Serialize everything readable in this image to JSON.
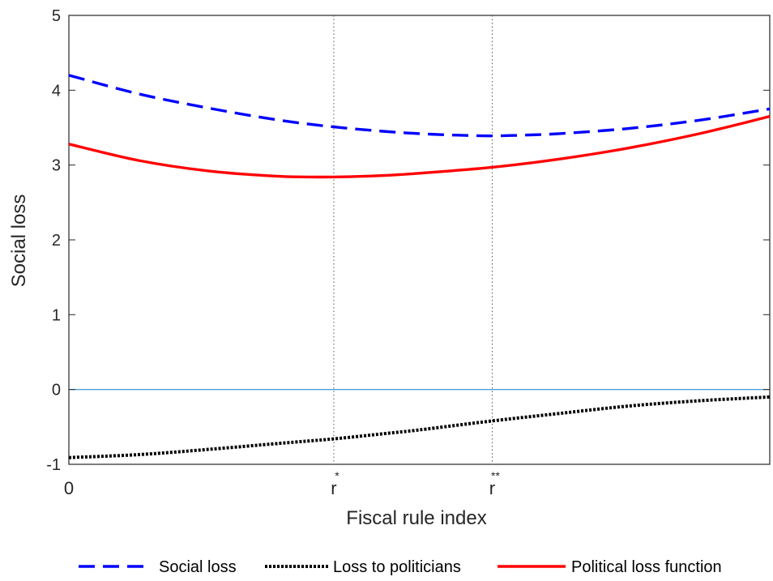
{
  "chart_data": {
    "type": "line",
    "xlabel": "Fiscal rule index",
    "ylabel": "Social loss",
    "xlim": [
      0,
      1
    ],
    "ylim": [
      -1,
      5
    ],
    "y_ticks": [
      "-1",
      "0",
      "1",
      "2",
      "3",
      "4",
      "5"
    ],
    "x_ticks": [
      {
        "x": 0,
        "label": "0",
        "sup": ""
      },
      {
        "x": 0.378,
        "label": "r",
        "sup": "*"
      },
      {
        "x": 0.604,
        "label": "r",
        "sup": "**"
      }
    ],
    "vertical_markers": [
      0.378,
      0.604
    ],
    "reference_line": {
      "y": 0,
      "color": "#4a9fdc"
    },
    "grid": false,
    "legend_position": "bottom",
    "series": [
      {
        "name": "Social loss",
        "color": "#0000ff",
        "style": "dashed",
        "x": [
          0,
          0.1,
          0.2,
          0.3,
          0.378,
          0.45,
          0.5,
          0.55,
          0.604,
          0.65,
          0.7,
          0.8,
          0.9,
          1.0
        ],
        "y": [
          4.2,
          3.95,
          3.76,
          3.6,
          3.51,
          3.45,
          3.42,
          3.4,
          3.39,
          3.4,
          3.42,
          3.49,
          3.6,
          3.75
        ]
      },
      {
        "name": "Loss to politicians",
        "color": "#000000",
        "style": "dotted",
        "x": [
          0,
          0.1,
          0.2,
          0.3,
          0.378,
          0.45,
          0.5,
          0.604,
          0.7,
          0.8,
          0.9,
          1.0
        ],
        "y": [
          -0.91,
          -0.87,
          -0.8,
          -0.72,
          -0.66,
          -0.59,
          -0.54,
          -0.42,
          -0.32,
          -0.22,
          -0.15,
          -0.1
        ]
      },
      {
        "name": "Political loss function",
        "color": "#ff0000",
        "style": "solid",
        "x": [
          0,
          0.1,
          0.2,
          0.3,
          0.378,
          0.45,
          0.5,
          0.604,
          0.7,
          0.8,
          0.9,
          1.0
        ],
        "y": [
          3.28,
          3.06,
          2.92,
          2.85,
          2.84,
          2.86,
          2.89,
          2.97,
          3.08,
          3.23,
          3.42,
          3.65
        ]
      }
    ]
  }
}
